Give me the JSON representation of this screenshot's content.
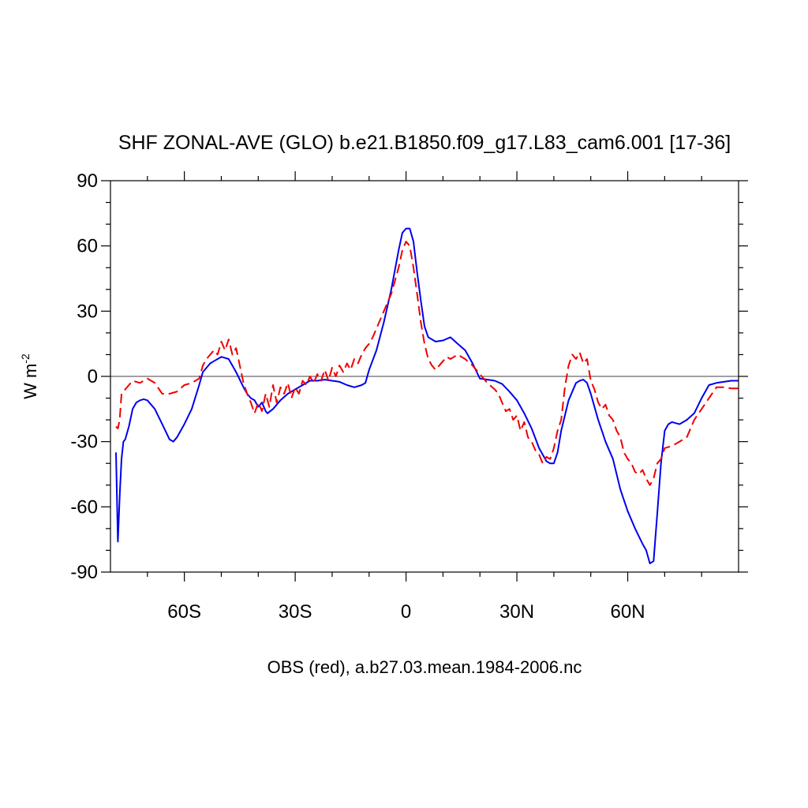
{
  "chart_data": {
    "type": "line",
    "title": "SHF ZONAL-AVE (GLO) b.e21.B1850.f09_g17.L83_cam6.001 [17-36]",
    "xlabel": "OBS (red), a.b27.03.mean.1984-2006.nc",
    "ylabel_base": "W m",
    "ylabel_exponent": "-2",
    "xlim": [
      -80,
      90
    ],
    "ylim": [
      -90,
      90
    ],
    "x_ticks": [
      {
        "value": -60,
        "label": "60S"
      },
      {
        "value": -30,
        "label": "30S"
      },
      {
        "value": 0,
        "label": "0"
      },
      {
        "value": 30,
        "label": "30N"
      },
      {
        "value": 60,
        "label": "60N"
      }
    ],
    "y_ticks": [
      {
        "value": 90,
        "label": "90"
      },
      {
        "value": 60,
        "label": "60"
      },
      {
        "value": 30,
        "label": "30"
      },
      {
        "value": 0,
        "label": "0"
      },
      {
        "value": -30,
        "label": "-30"
      },
      {
        "value": -60,
        "label": "-60"
      },
      {
        "value": -90,
        "label": "-90"
      }
    ],
    "reference_line_y": 0,
    "series": [
      {
        "name": "Model (b.e21.B1850.f09_g17.L83_cam6.001)",
        "color": "#0000ee",
        "dash": "solid",
        "x": [
          -78.5,
          -78.0,
          -77.5,
          -77.0,
          -76.5,
          -76.0,
          -75.0,
          -74.0,
          -73.0,
          -72.0,
          -71.0,
          -70.0,
          -68.0,
          -66.0,
          -64.0,
          -63.0,
          -62.0,
          -60.0,
          -58.0,
          -56.0,
          -55.0,
          -53.0,
          -52.0,
          -50.0,
          -48.0,
          -46.0,
          -44.0,
          -43.0,
          -42.0,
          -41.0,
          -40.0,
          -39.0,
          -38.0,
          -37.5,
          -36.0,
          -34.0,
          -32.0,
          -30.0,
          -28.0,
          -26.0,
          -24.0,
          -22.0,
          -20.0,
          -18.0,
          -16.0,
          -14.0,
          -12.0,
          -11.0,
          -10.0,
          -8.0,
          -6.0,
          -4.0,
          -2.0,
          -1.0,
          0.0,
          1.0,
          2.0,
          3.0,
          4.0,
          5.0,
          6.0,
          8.0,
          10.0,
          12.0,
          14.0,
          16.0,
          18.0,
          20.0,
          22.0,
          24.0,
          26.0,
          28.0,
          30.0,
          32.0,
          34.0,
          36.0,
          38.0,
          39.0,
          40.0,
          41.0,
          42.0,
          44.0,
          46.0,
          47.0,
          48.0,
          49.0,
          50.0,
          52.0,
          54.0,
          56.0,
          58.0,
          60.0,
          62.0,
          64.0,
          65.0,
          66.0,
          67.0,
          68.0,
          69.0,
          70.0,
          71.0,
          72.0,
          74.0,
          76.0,
          78.0,
          80.0,
          82.0,
          84.0,
          86.0,
          88.0,
          90.0
        ],
        "y": [
          -35.0,
          -76.0,
          -55.0,
          -38.0,
          -30.0,
          -29.0,
          -23.0,
          -15.0,
          -12.0,
          -11.0,
          -10.5,
          -11.0,
          -15.0,
          -22.0,
          -29.0,
          -30.0,
          -28.0,
          -22.0,
          -15.0,
          -4.0,
          2.0,
          6.0,
          7.0,
          9.0,
          8.0,
          2.0,
          -5.0,
          -8.0,
          -10.0,
          -11.0,
          -14.0,
          -12.0,
          -16.0,
          -17.0,
          -15.0,
          -11.0,
          -8.0,
          -6.0,
          -4.0,
          -2.0,
          -2.0,
          -1.5,
          -2.0,
          -2.5,
          -4.0,
          -5.0,
          -4.0,
          -3.0,
          3.0,
          12.0,
          25.0,
          40.0,
          58.0,
          66.0,
          68.0,
          68.0,
          62.0,
          48.0,
          35.0,
          23.0,
          18.0,
          16.0,
          16.5,
          18.0,
          15.0,
          12.0,
          6.0,
          -1.0,
          -1.5,
          -2.0,
          -3.5,
          -7.0,
          -11.0,
          -17.0,
          -24.0,
          -33.0,
          -39.0,
          -40.0,
          -40.0,
          -35.0,
          -25.0,
          -11.0,
          -3.0,
          -2.0,
          -1.5,
          -3.0,
          -8.0,
          -20.0,
          -30.0,
          -38.0,
          -52.0,
          -62.0,
          -70.0,
          -77.0,
          -80.0,
          -86.0,
          -85.0,
          -63.0,
          -40.0,
          -25.0,
          -22.0,
          -21.0,
          -22.0,
          -20.0,
          -17.0,
          -10.0,
          -4.0,
          -3.0,
          -2.5,
          -2.0,
          -2.0
        ]
      },
      {
        "name": "OBS (red)",
        "color": "#ee0000",
        "dash": "dashed",
        "x": [
          -78.5,
          -78.0,
          -77.5,
          -77.0,
          -76.0,
          -75.0,
          -74.0,
          -72.0,
          -70.0,
          -68.0,
          -66.0,
          -64.0,
          -62.0,
          -60.0,
          -58.0,
          -56.0,
          -55.0,
          -54.0,
          -52.0,
          -51.0,
          -50.0,
          -49.0,
          -48.0,
          -47.0,
          -46.0,
          -45.0,
          -44.0,
          -43.0,
          -42.0,
          -41.0,
          -40.0,
          -39.0,
          -38.0,
          -37.0,
          -36.0,
          -35.0,
          -34.0,
          -33.0,
          -32.0,
          -31.0,
          -30.0,
          -29.0,
          -28.0,
          -27.0,
          -26.0,
          -25.0,
          -24.0,
          -23.0,
          -22.0,
          -21.0,
          -20.0,
          -19.0,
          -18.0,
          -17.0,
          -16.0,
          -15.0,
          -14.0,
          -13.0,
          -12.0,
          -11.0,
          -10.0,
          -9.0,
          -8.0,
          -6.0,
          -4.0,
          -2.0,
          -1.0,
          0.0,
          1.0,
          2.0,
          3.0,
          4.0,
          5.0,
          6.0,
          7.0,
          8.0,
          9.0,
          10.0,
          11.0,
          12.0,
          14.0,
          16.0,
          18.0,
          20.0,
          22.0,
          24.0,
          25.0,
          26.0,
          27.0,
          28.0,
          29.0,
          30.0,
          31.0,
          32.0,
          33.0,
          34.0,
          35.0,
          36.0,
          37.0,
          38.0,
          39.0,
          40.0,
          41.0,
          42.0,
          43.0,
          44.0,
          45.0,
          46.0,
          47.0,
          48.0,
          49.0,
          50.0,
          51.0,
          52.0,
          53.0,
          54.0,
          55.0,
          56.0,
          57.0,
          58.0,
          59.0,
          60.0,
          61.0,
          62.0,
          63.0,
          64.0,
          65.0,
          66.0,
          67.0,
          68.0,
          69.0,
          70.0,
          72.0,
          74.0,
          76.0,
          78.0,
          80.0,
          82.0,
          84.0,
          86.0,
          88.0,
          90.0
        ],
        "y": [
          -23.0,
          -24.0,
          -20.0,
          -8.0,
          -6.0,
          -4.0,
          -2.0,
          -3.0,
          -1.0,
          -3.0,
          -8.0,
          -8.0,
          -7.0,
          -4.0,
          -3.0,
          -1.0,
          5.0,
          8.0,
          12.0,
          10.0,
          16.0,
          12.0,
          17.0,
          10.0,
          13.0,
          5.0,
          -3.0,
          -8.0,
          -12.0,
          -17.0,
          -12.0,
          -16.0,
          -8.0,
          -14.0,
          -4.0,
          -12.0,
          -5.0,
          -8.0,
          -3.0,
          -10.0,
          -5.0,
          -8.0,
          -2.0,
          -4.0,
          0.0,
          -3.0,
          1.0,
          -2.0,
          3.0,
          -2.0,
          4.0,
          0.0,
          5.0,
          2.0,
          6.0,
          3.0,
          8.0,
          6.0,
          10.0,
          13.0,
          15.0,
          18.0,
          22.0,
          30.0,
          38.0,
          50.0,
          58.0,
          62.0,
          60.0,
          50.0,
          38.0,
          25.0,
          15.0,
          8.0,
          5.0,
          3.0,
          5.0,
          7.0,
          9.0,
          8.0,
          10.0,
          8.0,
          5.0,
          1.0,
          -3.0,
          -6.0,
          -8.0,
          -12.0,
          -16.0,
          -15.0,
          -20.0,
          -18.0,
          -25.0,
          -21.0,
          -28.0,
          -30.0,
          -34.0,
          -36.0,
          -40.0,
          -37.0,
          -38.0,
          -33.0,
          -25.0,
          -20.0,
          -5.0,
          5.0,
          10.0,
          8.0,
          11.0,
          6.0,
          8.0,
          -2.0,
          -6.0,
          -12.0,
          -15.0,
          -13.0,
          -18.0,
          -20.0,
          -25.0,
          -28.0,
          -35.0,
          -38.0,
          -40.0,
          -44.0,
          -45.0,
          -43.0,
          -47.0,
          -50.0,
          -47.0,
          -40.0,
          -38.0,
          -33.0,
          -32.0,
          -30.0,
          -28.0,
          -20.0,
          -15.0,
          -10.0,
          -5.0,
          -5.0,
          -5.5,
          -5.5
        ]
      }
    ]
  }
}
